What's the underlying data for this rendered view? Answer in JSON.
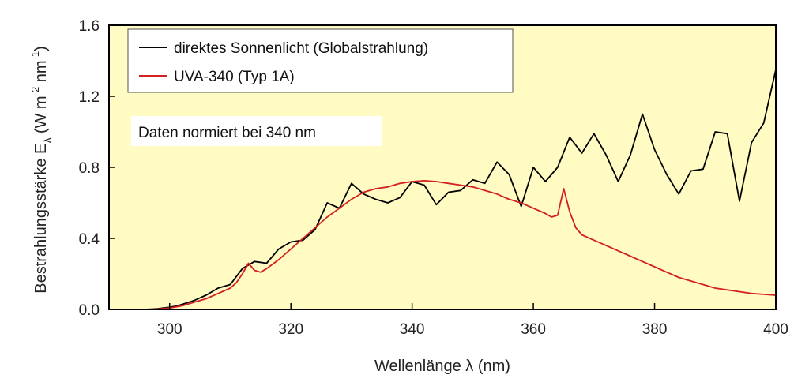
{
  "chart_data": {
    "type": "line",
    "xlabel": "Wellenlänge λ (nm)",
    "ylabel_main": "Bestrahlungsstärke E",
    "ylabel_sub": "λ",
    "ylabel_unit_open": "(W m",
    "ylabel_exp1": "-2",
    "ylabel_mid": " nm",
    "ylabel_exp2": "-1",
    "ylabel_close": ")",
    "xlim": [
      290,
      400
    ],
    "ylim": [
      0.0,
      1.6
    ],
    "xticks": [
      300,
      320,
      340,
      360,
      380,
      400
    ],
    "yticks": [
      0.0,
      0.4,
      0.8,
      1.2,
      1.6
    ],
    "ytick_labels": [
      "0.0",
      "0.4",
      "0.8",
      "1.2",
      "1.6"
    ],
    "grid": false,
    "background_color": "#fffbc2",
    "legend_position": "top-left",
    "annotation": "Daten normiert bei 340 nm",
    "series": [
      {
        "name": "direktes Sonnenlicht (Globalstrahlung)",
        "color": "#000000",
        "x": [
          295,
          296,
          297,
          298,
          299,
          300,
          301,
          302,
          304,
          306,
          308,
          310,
          312,
          314,
          316,
          318,
          320,
          322,
          324,
          326,
          328,
          330,
          332,
          334,
          336,
          338,
          340,
          342,
          344,
          346,
          348,
          350,
          352,
          354,
          356,
          358,
          360,
          362,
          364,
          366,
          368,
          370,
          372,
          374,
          376,
          378,
          380,
          382,
          384,
          386,
          388,
          390,
          392,
          394,
          396,
          398,
          400
        ],
        "y": [
          0.0,
          0.0,
          0.002,
          0.004,
          0.008,
          0.012,
          0.018,
          0.028,
          0.05,
          0.08,
          0.12,
          0.14,
          0.23,
          0.27,
          0.26,
          0.34,
          0.38,
          0.39,
          0.45,
          0.6,
          0.57,
          0.71,
          0.65,
          0.62,
          0.6,
          0.63,
          0.72,
          0.7,
          0.59,
          0.66,
          0.67,
          0.73,
          0.71,
          0.83,
          0.76,
          0.58,
          0.8,
          0.72,
          0.8,
          0.97,
          0.88,
          0.99,
          0.87,
          0.72,
          0.87,
          1.1,
          0.9,
          0.76,
          0.65,
          0.78,
          0.79,
          1.0,
          0.99,
          0.61,
          0.94,
          1.05,
          1.35
        ]
      },
      {
        "name": "UVA-340 (Typ 1A)",
        "color": "#d42020",
        "x": [
          295,
          298,
          300,
          302,
          304,
          306,
          308,
          310,
          311,
          312,
          313,
          314,
          315,
          316,
          318,
          320,
          322,
          324,
          326,
          328,
          330,
          332,
          334,
          336,
          338,
          340,
          342,
          344,
          346,
          348,
          350,
          352,
          354,
          356,
          358,
          360,
          362,
          363,
          364,
          365,
          366,
          367,
          368,
          370,
          372,
          374,
          376,
          378,
          380,
          382,
          384,
          386,
          388,
          390,
          392,
          394,
          396,
          398,
          400
        ],
        "y": [
          0.0,
          0.002,
          0.008,
          0.02,
          0.04,
          0.06,
          0.09,
          0.12,
          0.15,
          0.2,
          0.26,
          0.22,
          0.21,
          0.23,
          0.28,
          0.34,
          0.4,
          0.46,
          0.52,
          0.57,
          0.62,
          0.66,
          0.68,
          0.69,
          0.71,
          0.72,
          0.725,
          0.72,
          0.71,
          0.7,
          0.69,
          0.67,
          0.65,
          0.62,
          0.6,
          0.57,
          0.54,
          0.52,
          0.53,
          0.68,
          0.55,
          0.46,
          0.42,
          0.39,
          0.36,
          0.33,
          0.3,
          0.27,
          0.24,
          0.21,
          0.18,
          0.16,
          0.14,
          0.12,
          0.11,
          0.1,
          0.09,
          0.085,
          0.08
        ]
      }
    ]
  }
}
